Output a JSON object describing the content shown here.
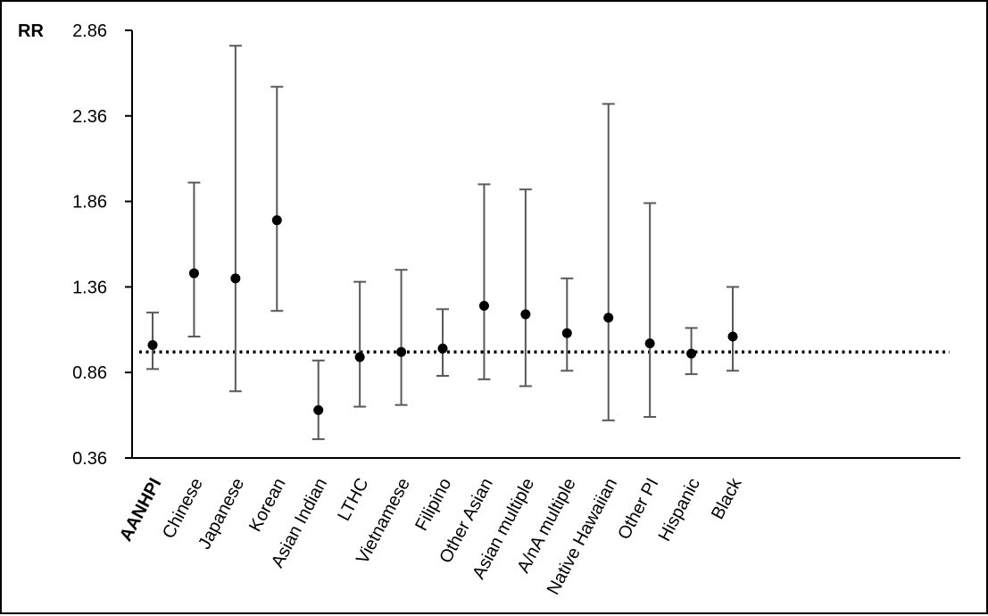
{
  "chart_data": {
    "type": "scatter",
    "title": "",
    "xlabel": "",
    "ylabel": "RR",
    "ylim": [
      0.36,
      2.86
    ],
    "yticks": [
      "0.36",
      "0.86",
      "1.36",
      "1.86",
      "2.36",
      "2.86"
    ],
    "grid": false,
    "legend": "none",
    "reference_line": {
      "value": 0.98,
      "style": "dotted"
    },
    "categories": [
      "AANHPI",
      "Chinese",
      "Japanese",
      "Korean",
      "Asian Indian",
      "LTHC",
      "Vietnamese",
      "Filipino",
      "Other Asian",
      "Asian multiple",
      "A/nA multiple",
      "Native Hawaiian",
      "Other PI",
      "Hispanic",
      "Black"
    ],
    "bold_categories": [
      "AANHPI"
    ],
    "series": [
      {
        "values": [
          1.02,
          1.44,
          1.41,
          1.75,
          0.64,
          0.95,
          0.98,
          1.0,
          1.25,
          1.2,
          1.09,
          1.18,
          1.03,
          0.97,
          1.07
        ],
        "lower": [
          0.88,
          1.07,
          0.75,
          1.22,
          0.47,
          0.66,
          0.67,
          0.84,
          0.82,
          0.78,
          0.87,
          0.58,
          0.6,
          0.85,
          0.87
        ],
        "upper": [
          1.21,
          1.97,
          2.77,
          2.53,
          0.93,
          1.39,
          1.46,
          1.23,
          1.96,
          1.93,
          1.41,
          2.43,
          1.85,
          1.12,
          1.36
        ]
      }
    ],
    "colors": {
      "marker": "#000000",
      "errorbar": "#595959",
      "axis": "#000000",
      "reference": "#000000"
    }
  }
}
